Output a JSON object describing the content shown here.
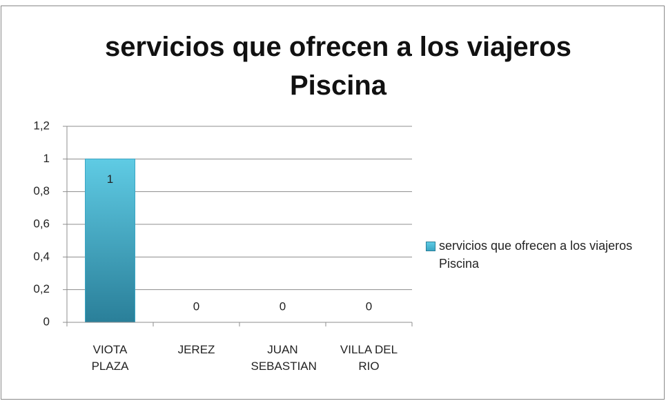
{
  "chart_data": {
    "type": "bar",
    "title": "servicios que ofrecen a los viajeros Piscina",
    "categories": [
      "VIOTA PLAZA",
      "JEREZ",
      "JUAN SEBASTIAN",
      "VILLA DEL RIO"
    ],
    "series": [
      {
        "name": "servicios que ofrecen a los viajeros Piscina",
        "color": "#3aa6c4",
        "values": [
          1,
          0,
          0,
          0
        ]
      }
    ],
    "ylim": [
      0,
      1.2
    ],
    "yticks": [
      0,
      {
        "value": 0.2,
        "label": "0,2"
      },
      {
        "value": 0.4,
        "label": "0,4"
      },
      {
        "value": 0.6,
        "label": "0,6"
      },
      {
        "value": 0.8,
        "label": "0,8"
      },
      1,
      {
        "value": 1.2,
        "label": "1,2"
      }
    ],
    "grid": true,
    "legend": "right"
  }
}
